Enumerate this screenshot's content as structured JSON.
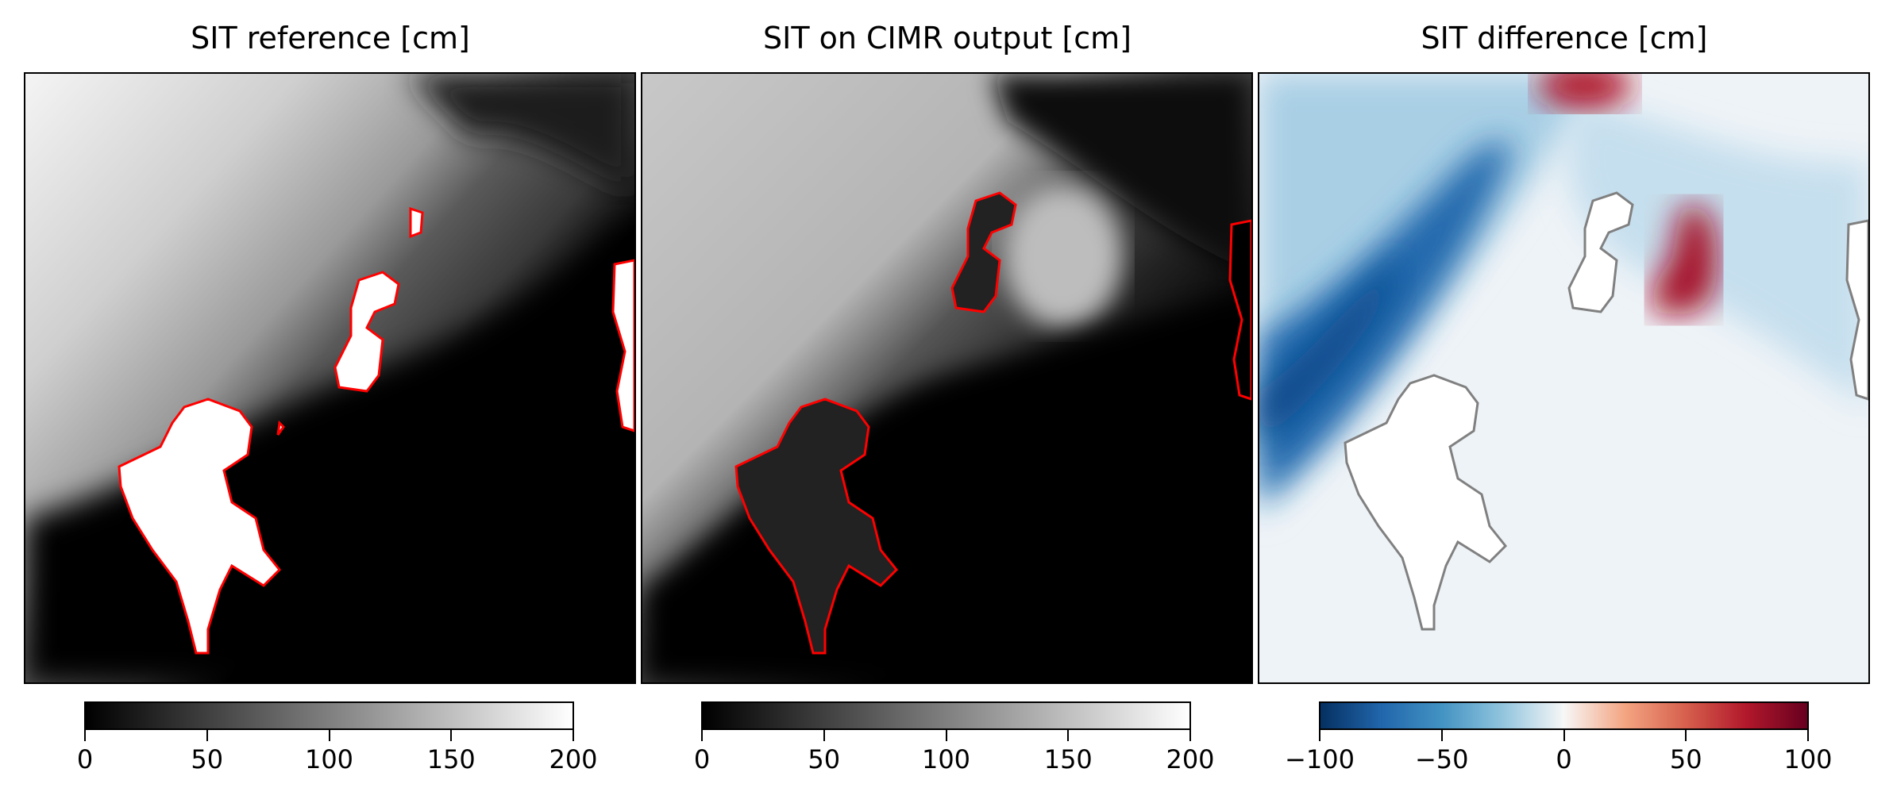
{
  "chart_data": [
    {
      "type": "heatmap",
      "title": "SIT reference [cm]",
      "colormap": "greys_r",
      "range": [
        0,
        200
      ],
      "colorbar": {
        "ticks": [
          "0",
          "50",
          "100",
          "150",
          "200"
        ],
        "orientation": "horizontal",
        "placement": "bottom"
      },
      "coastline_color": "#ff0000",
      "land_color": "#ffffff"
    },
    {
      "type": "heatmap",
      "title": "SIT on CIMR output [cm]",
      "colormap": "greys_r",
      "range": [
        0,
        200
      ],
      "colorbar": {
        "ticks": [
          "0",
          "50",
          "100",
          "150",
          "200"
        ],
        "orientation": "horizontal",
        "placement": "bottom"
      },
      "coastline_color": "#ff0000",
      "land_color": "#000000"
    },
    {
      "type": "heatmap",
      "title": "SIT difference [cm]",
      "colormap": "RdBu_r",
      "range": [
        -100,
        100
      ],
      "colorbar": {
        "ticks": [
          "−100",
          "−50",
          "0",
          "50",
          "100"
        ],
        "orientation": "horizontal",
        "placement": "bottom"
      },
      "coastline_color": "#808080",
      "land_color": "#ffffff"
    }
  ]
}
